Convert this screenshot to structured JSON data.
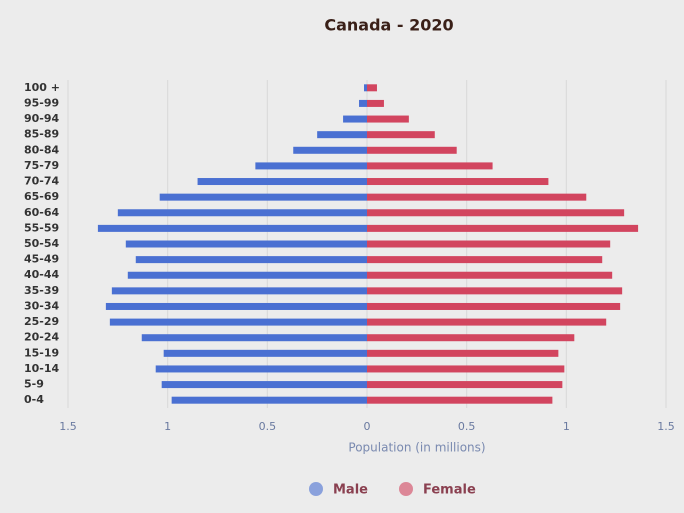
{
  "chart_data": {
    "type": "population-pyramid",
    "title": "Canada - 2020",
    "x_label": "Population (in millions)",
    "categories": [
      "100 +",
      "95-99",
      "90-94",
      "85-89",
      "80-84",
      "75-79",
      "70-74",
      "65-69",
      "60-64",
      "55-59",
      "50-54",
      "45-49",
      "40-44",
      "35-39",
      "30-34",
      "25-29",
      "20-24",
      "15-19",
      "10-14",
      "5-9",
      "0-4"
    ],
    "series": [
      {
        "name": "Male",
        "color": "#4a70d2",
        "values": [
          0.015,
          0.04,
          0.12,
          0.25,
          0.37,
          0.56,
          0.85,
          1.04,
          1.25,
          1.35,
          1.21,
          1.16,
          1.2,
          1.28,
          1.31,
          1.29,
          1.13,
          1.02,
          1.06,
          1.03,
          0.98
        ]
      },
      {
        "name": "Female",
        "color": "#d2455f",
        "values": [
          0.05,
          0.085,
          0.21,
          0.34,
          0.45,
          0.63,
          0.91,
          1.1,
          1.29,
          1.36,
          1.22,
          1.18,
          1.23,
          1.28,
          1.27,
          1.2,
          1.04,
          0.96,
          0.99,
          0.98,
          0.93
        ]
      }
    ],
    "xlim": [
      -1.5,
      1.5
    ],
    "xticks": [
      {
        "value": -1.5,
        "label": "1.5"
      },
      {
        "value": -1,
        "label": "1"
      },
      {
        "value": -0.5,
        "label": "0.5"
      },
      0,
      0.5,
      1,
      1.5
    ],
    "grid": true,
    "legend": "bottom"
  }
}
